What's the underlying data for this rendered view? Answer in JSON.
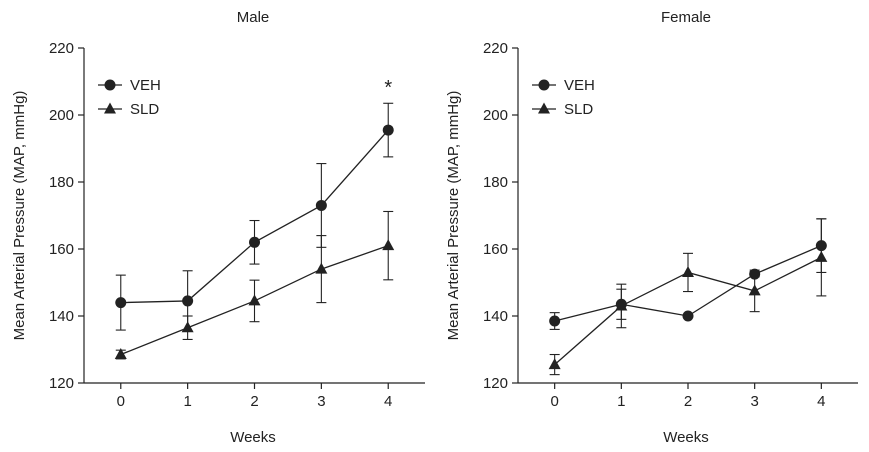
{
  "chart_data": [
    {
      "type": "line",
      "title": "Male",
      "xlabel": "Weeks",
      "ylabel": "Mean Arterial Pressure (MAP, mmHg)",
      "x": [
        0,
        1,
        2,
        3,
        4
      ],
      "xlim": [
        -0.55,
        4.55
      ],
      "ylim": [
        120,
        220
      ],
      "yticks": [
        120,
        140,
        160,
        180,
        200,
        220
      ],
      "grid": false,
      "legend_position": "top-left",
      "series": [
        {
          "name": "VEH",
          "marker": "circle",
          "values": [
            144,
            144.5,
            162,
            173,
            195.5
          ],
          "errors": [
            8.2,
            9,
            6.5,
            12.5,
            8
          ]
        },
        {
          "name": "SLD",
          "marker": "triangle",
          "values": [
            128.5,
            136.5,
            144.5,
            154,
            161
          ],
          "errors": [
            1.3,
            3.5,
            6.2,
            10,
            10.2
          ]
        }
      ],
      "annotations": [
        {
          "text": "*",
          "x": 4,
          "y": 208
        }
      ]
    },
    {
      "type": "line",
      "title": "Female",
      "xlabel": "Weeks",
      "ylabel": "Mean Arterial Pressure (MAP, mmHg)",
      "x": [
        0,
        1,
        2,
        3,
        4
      ],
      "xlim": [
        -0.55,
        4.55
      ],
      "ylim": [
        120,
        220
      ],
      "yticks": [
        120,
        140,
        160,
        180,
        200,
        220
      ],
      "grid": false,
      "legend_position": "top-left",
      "series": [
        {
          "name": "VEH",
          "marker": "circle",
          "values": [
            138.5,
            143.5,
            140,
            152.5,
            161
          ],
          "errors": [
            2.5,
            4.5,
            0,
            0.8,
            8
          ]
        },
        {
          "name": "SLD",
          "marker": "triangle",
          "values": [
            125.5,
            143,
            153,
            147.5,
            157.5
          ],
          "errors": [
            3,
            6.5,
            5.7,
            6.2,
            11.5
          ]
        }
      ],
      "annotations": []
    }
  ]
}
